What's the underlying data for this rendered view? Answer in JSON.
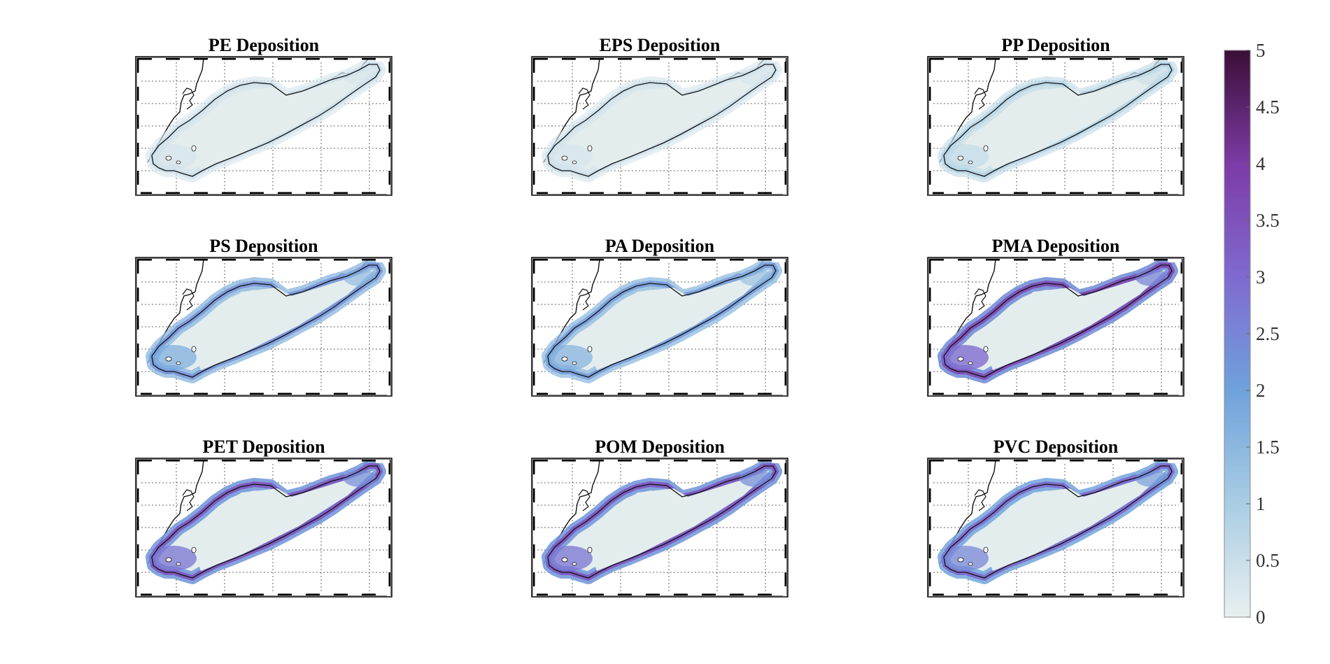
{
  "figure": {
    "panels": [
      {
        "title": "PE Deposition",
        "level": 0.12
      },
      {
        "title": "EPS Deposition",
        "level": 0.12
      },
      {
        "title": "PP Deposition",
        "level": 0.22
      },
      {
        "title": "PS Deposition",
        "level": 0.55
      },
      {
        "title": "PA Deposition",
        "level": 0.52
      },
      {
        "title": "PMA Deposition",
        "level": 0.85
      },
      {
        "title": "PET Deposition",
        "level": 0.8
      },
      {
        "title": "POM Deposition",
        "level": 0.8
      },
      {
        "title": "PVC Deposition",
        "level": 0.72
      }
    ],
    "colorbar": {
      "min": 0,
      "max": 5,
      "ticks": [
        "0",
        "0.5",
        "1",
        "1.5",
        "2",
        "2.5",
        "3",
        "3.5",
        "4",
        "4.5",
        "5"
      ],
      "colors": [
        "#e8f0f0",
        "#a9cde3",
        "#6fa2dc",
        "#7f6ad0",
        "#7d3ba6",
        "#3a0f36"
      ]
    },
    "colors": {
      "water_base": "#e3eded",
      "shoreline": "#111111",
      "grid": "#666666",
      "frame": "#000000"
    }
  }
}
